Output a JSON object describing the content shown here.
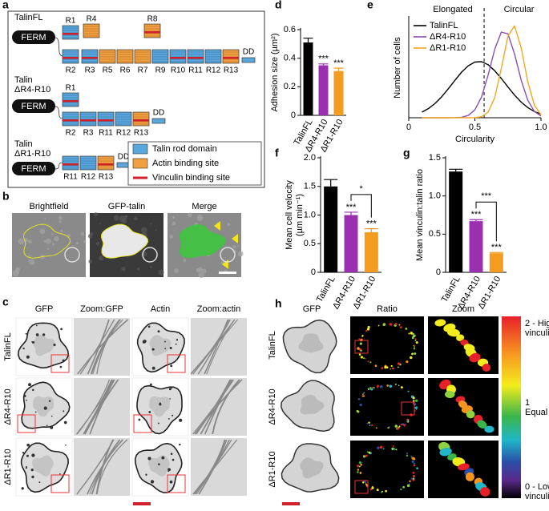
{
  "panel_a": {
    "letter": "a",
    "constructs": [
      {
        "name": [
          "TalinFL"
        ],
        "head": "FERM",
        "rods": [
          "R1",
          "R4",
          "R8",
          "R2",
          "R3",
          "R5",
          "R6",
          "R7",
          "R9",
          "R10",
          "R11",
          "R12",
          "R13"
        ],
        "tail": "DD"
      },
      {
        "name": [
          "Talin",
          "ΔR4-R10"
        ],
        "head": "FERM",
        "rods": [
          "R1",
          "R2",
          "R3",
          "R11",
          "R12",
          "R13"
        ],
        "tail": "DD"
      },
      {
        "name": [
          "Talin",
          "ΔR1-R10"
        ],
        "head": "FERM",
        "rods": [
          "R11",
          "R12",
          "R13"
        ],
        "tail": "DD"
      }
    ],
    "legend": [
      "Talin rod domain",
      "Actin binding site",
      "Vinculin binding site"
    ]
  },
  "panel_b": {
    "letter": "b",
    "labels": [
      "Brightfield",
      "GFP-talin",
      "Merge"
    ]
  },
  "panel_c": {
    "letter": "c",
    "columns": [
      "GFP",
      "Zoom:GFP",
      "Actin",
      "Zoom:actin"
    ],
    "rows": [
      "TalinFL",
      "ΔR4-R10",
      "ΔR1-R10"
    ]
  },
  "chart_data": [
    {
      "type": "bar",
      "letter": "d",
      "ylabel": [
        "Adhesion size (µm²)"
      ],
      "categories": [
        "TalinFL",
        "ΔR4-R10",
        "ΔR1-R10"
      ],
      "values": [
        0.51,
        0.35,
        0.31
      ],
      "errors": [
        0.03,
        0.01,
        0.02
      ],
      "colors": [
        "#000000",
        "#9a2fb0",
        "#f39c1f"
      ],
      "significance": [
        null,
        "***",
        "***"
      ],
      "ylim": [
        0,
        0.6
      ],
      "yticks": [
        0,
        0.2,
        0.4,
        0.6
      ]
    },
    {
      "type": "line",
      "letter": "e",
      "xlabel": "Circularity",
      "ylabel": "Number of cells",
      "annotations": [
        "Elongated",
        "Circular"
      ],
      "threshold": 0.57,
      "legend": "upper left",
      "x": [
        0.1,
        0.15,
        0.2,
        0.25,
        0.3,
        0.35,
        0.4,
        0.45,
        0.5,
        0.55,
        0.6,
        0.65,
        0.7,
        0.75,
        0.8,
        0.85,
        0.9,
        0.95,
        1.0
      ],
      "series": [
        {
          "name": "TalinFL",
          "color": "#000000",
          "values": [
            0.89,
            1.48,
            2.31,
            3.38,
            4.65,
            6.0,
            7.29,
            8.31,
            8.9,
            8.96,
            8.47,
            7.52,
            6.27,
            4.91,
            3.62,
            2.5,
            1.62,
            0.99,
            0.57
          ]
        },
        {
          "name": "ΔR4-R10",
          "color": "#8a4fb5",
          "values": [
            0,
            0,
            0,
            0,
            0,
            0.02,
            0.08,
            0.37,
            1.25,
            3.3,
            6.8,
            10.95,
            13.7,
            13.4,
            10.2,
            6.0,
            2.8,
            1.0,
            0.28
          ]
        },
        {
          "name": "ΔR1-R10",
          "color": "#f5a623",
          "values": [
            0,
            0,
            0,
            0,
            0,
            0,
            0,
            0,
            0.02,
            0.16,
            0.88,
            3.2,
            7.89,
            13.06,
            14.68,
            11.18,
            5.76,
            2.0,
            0.47
          ]
        }
      ],
      "xlim": [
        0,
        1
      ],
      "xticks": [
        0,
        0.5,
        {
          "value": 1,
          "label": "1.0"
        }
      ],
      "ylim": [
        0,
        16
      ]
    },
    {
      "type": "bar",
      "letter": "f",
      "ylabel": [
        "Mean cell velocity",
        "(µm min⁻¹)"
      ],
      "categories": [
        "TalinFL",
        "ΔR4-R10",
        "ΔR1-R10"
      ],
      "values": [
        1.5,
        1.0,
        0.7
      ],
      "errors": [
        0.12,
        0.05,
        0.06
      ],
      "colors": [
        "#000000",
        "#9a2fb0",
        "#f39c1f"
      ],
      "significance": [
        null,
        "***",
        "***"
      ],
      "bracket_label": "*",
      "ylim": [
        0,
        2
      ],
      "yticks": [
        0,
        0.5,
        {
          "value": 1,
          "label": "1.0"
        },
        1.5,
        {
          "value": 2,
          "label": "2.0"
        }
      ]
    },
    {
      "type": "bar",
      "letter": "g",
      "ylabel": [
        "Mean vinculin:talin ratio"
      ],
      "categories": [
        "TalinFL",
        "ΔR4-R10",
        "ΔR1-R10"
      ],
      "values": [
        1.32,
        0.67,
        0.25
      ],
      "errors": [
        0.03,
        0.02,
        0.01
      ],
      "colors": [
        "#000000",
        "#9a2fb0",
        "#f39c1f"
      ],
      "significance": [
        null,
        "***",
        "***"
      ],
      "bracket_label": "***",
      "ylim": [
        0,
        1.5
      ],
      "yticks": [
        0,
        0.5,
        {
          "value": 1,
          "label": "1.0"
        },
        1.5
      ]
    }
  ],
  "panel_h": {
    "letter": "h",
    "columns": [
      "GFP",
      "Ratio",
      "Zoom"
    ],
    "rows": [
      "TalinFL",
      "ΔR4-R10",
      "ΔR1-R10"
    ],
    "colorbar_labels": [
      [
        "2 - High",
        "vinculin"
      ],
      [
        "1",
        "Equal"
      ],
      [
        "0 - Low",
        "vinculin"
      ]
    ]
  }
}
